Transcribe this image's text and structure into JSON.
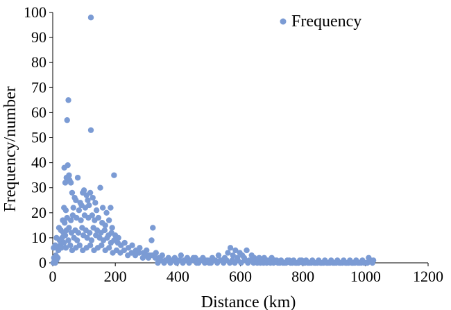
{
  "chart_data": {
    "type": "scatter",
    "title": "",
    "xlabel": "Distance (km)",
    "ylabel": "Frequency/number",
    "xlim": [
      0,
      1200
    ],
    "ylim": [
      0,
      100
    ],
    "x_ticks": [
      "0",
      "200",
      "400",
      "600",
      "800",
      "1000",
      "1200"
    ],
    "y_ticks": [
      "0",
      "10",
      "20",
      "30",
      "40",
      "50",
      "60",
      "70",
      "80",
      "90",
      "100"
    ],
    "grid": false,
    "legend_position": "top-right",
    "marker_color": "#7b9bd4",
    "series": [
      {
        "name": "Frequency",
        "points": [
          [
            122,
            98
          ],
          [
            50,
            65
          ],
          [
            46,
            57
          ],
          [
            122,
            53
          ],
          [
            37,
            38
          ],
          [
            48,
            39
          ],
          [
            52,
            35
          ],
          [
            80,
            34
          ],
          [
            196,
            35
          ],
          [
            44,
            34
          ],
          [
            54,
            33
          ],
          [
            58,
            32
          ],
          [
            40,
            32
          ],
          [
            62,
            28
          ],
          [
            96,
            28
          ],
          [
            120,
            28
          ],
          [
            128,
            26
          ],
          [
            152,
            30
          ],
          [
            100,
            29
          ],
          [
            108,
            27
          ],
          [
            70,
            26
          ],
          [
            74,
            25
          ],
          [
            88,
            24
          ],
          [
            112,
            25
          ],
          [
            136,
            24
          ],
          [
            160,
            22
          ],
          [
            172,
            20
          ],
          [
            185,
            22
          ],
          [
            36,
            22
          ],
          [
            42,
            21
          ],
          [
            66,
            22
          ],
          [
            84,
            21
          ],
          [
            92,
            23
          ],
          [
            104,
            22
          ],
          [
            116,
            23
          ],
          [
            140,
            21
          ],
          [
            32,
            17
          ],
          [
            38,
            16
          ],
          [
            46,
            18
          ],
          [
            58,
            17
          ],
          [
            64,
            19
          ],
          [
            76,
            18
          ],
          [
            90,
            17
          ],
          [
            102,
            19
          ],
          [
            114,
            18
          ],
          [
            126,
            19
          ],
          [
            134,
            17
          ],
          [
            146,
            18
          ],
          [
            158,
            16
          ],
          [
            168,
            15
          ],
          [
            180,
            17
          ],
          [
            190,
            14
          ],
          [
            20,
            14
          ],
          [
            26,
            13
          ],
          [
            34,
            12
          ],
          [
            44,
            13
          ],
          [
            52,
            14
          ],
          [
            60,
            12
          ],
          [
            72,
            13
          ],
          [
            82,
            12
          ],
          [
            94,
            14
          ],
          [
            106,
            13
          ],
          [
            118,
            12
          ],
          [
            130,
            14
          ],
          [
            142,
            13
          ],
          [
            154,
            12
          ],
          [
            166,
            13
          ],
          [
            178,
            11
          ],
          [
            188,
            12
          ],
          [
            200,
            11
          ],
          [
            210,
            10
          ],
          [
            12,
            10
          ],
          [
            22,
            9
          ],
          [
            30,
            10
          ],
          [
            40,
            11
          ],
          [
            50,
            9
          ],
          [
            68,
            10
          ],
          [
            78,
            9
          ],
          [
            98,
            11
          ],
          [
            110,
            10
          ],
          [
            124,
            9
          ],
          [
            138,
            11
          ],
          [
            150,
            10
          ],
          [
            162,
            9
          ],
          [
            174,
            10
          ],
          [
            186,
            8
          ],
          [
            196,
            9
          ],
          [
            208,
            8
          ],
          [
            218,
            7
          ],
          [
            230,
            8
          ],
          [
            242,
            6
          ],
          [
            254,
            7
          ],
          [
            266,
            5
          ],
          [
            278,
            6
          ],
          [
            290,
            4
          ],
          [
            300,
            5
          ],
          [
            310,
            3
          ],
          [
            320,
            14
          ],
          [
            316,
            9
          ],
          [
            330,
            4
          ],
          [
            8,
            7
          ],
          [
            14,
            6
          ],
          [
            18,
            5
          ],
          [
            24,
            7
          ],
          [
            28,
            6
          ],
          [
            36,
            8
          ],
          [
            42,
            6
          ],
          [
            56,
            7
          ],
          [
            62,
            5
          ],
          [
            74,
            6
          ],
          [
            86,
            7
          ],
          [
            96,
            5
          ],
          [
            108,
            6
          ],
          [
            120,
            7
          ],
          [
            132,
            5
          ],
          [
            144,
            6
          ],
          [
            156,
            7
          ],
          [
            168,
            5
          ],
          [
            180,
            6
          ],
          [
            192,
            4
          ],
          [
            204,
            5
          ],
          [
            216,
            4
          ],
          [
            228,
            5
          ],
          [
            240,
            3
          ],
          [
            252,
            4
          ],
          [
            264,
            3
          ],
          [
            276,
            4
          ],
          [
            288,
            2
          ],
          [
            298,
            3
          ],
          [
            306,
            2
          ],
          [
            318,
            3
          ],
          [
            328,
            2
          ],
          [
            4,
            2
          ],
          [
            6,
            1
          ],
          [
            10,
            3
          ],
          [
            16,
            2
          ],
          [
            2,
            0
          ],
          [
            8,
            0
          ],
          [
            12,
            1
          ],
          [
            3,
            6
          ],
          [
            340,
            2
          ],
          [
            350,
            3
          ],
          [
            360,
            1
          ],
          [
            370,
            2
          ],
          [
            380,
            1
          ],
          [
            390,
            2
          ],
          [
            400,
            1
          ],
          [
            410,
            3
          ],
          [
            420,
            1
          ],
          [
            430,
            2
          ],
          [
            440,
            1
          ],
          [
            450,
            2
          ],
          [
            460,
            0
          ],
          [
            470,
            1
          ],
          [
            480,
            2
          ],
          [
            490,
            1
          ],
          [
            500,
            0
          ],
          [
            510,
            2
          ],
          [
            520,
            1
          ],
          [
            530,
            3
          ],
          [
            540,
            1
          ],
          [
            550,
            2
          ],
          [
            560,
            4
          ],
          [
            568,
            6
          ],
          [
            576,
            3
          ],
          [
            584,
            5
          ],
          [
            590,
            2
          ],
          [
            598,
            4
          ],
          [
            606,
            3
          ],
          [
            612,
            2
          ],
          [
            620,
            5
          ],
          [
            628,
            1
          ],
          [
            636,
            3
          ],
          [
            644,
            2
          ],
          [
            652,
            1
          ],
          [
            660,
            2
          ],
          [
            668,
            1
          ],
          [
            676,
            2
          ],
          [
            684,
            0
          ],
          [
            692,
            1
          ],
          [
            700,
            2
          ],
          [
            710,
            1
          ],
          [
            720,
            0
          ],
          [
            730,
            1
          ],
          [
            740,
            0
          ],
          [
            750,
            1
          ],
          [
            760,
            0
          ],
          [
            770,
            1
          ],
          [
            780,
            0
          ],
          [
            790,
            1
          ],
          [
            800,
            0
          ],
          [
            810,
            1
          ],
          [
            820,
            0
          ],
          [
            830,
            1
          ],
          [
            840,
            0
          ],
          [
            850,
            1
          ],
          [
            860,
            0
          ],
          [
            870,
            1
          ],
          [
            880,
            0
          ],
          [
            890,
            1
          ],
          [
            900,
            0
          ],
          [
            910,
            1
          ],
          [
            920,
            0
          ],
          [
            930,
            1
          ],
          [
            940,
            0
          ],
          [
            950,
            1
          ],
          [
            960,
            0
          ],
          [
            970,
            1
          ],
          [
            980,
            0
          ],
          [
            990,
            1
          ],
          [
            1000,
            0
          ],
          [
            1010,
            2
          ],
          [
            1016,
            1
          ],
          [
            1022,
            0
          ],
          [
            1025,
            1
          ],
          [
            336,
            0
          ],
          [
            346,
            1
          ],
          [
            356,
            0
          ],
          [
            366,
            1
          ],
          [
            376,
            0
          ],
          [
            386,
            1
          ],
          [
            396,
            0
          ],
          [
            406,
            1
          ],
          [
            416,
            0
          ],
          [
            426,
            1
          ],
          [
            436,
            0
          ],
          [
            446,
            1
          ],
          [
            456,
            2
          ],
          [
            466,
            0
          ],
          [
            476,
            1
          ],
          [
            486,
            0
          ],
          [
            496,
            1
          ],
          [
            506,
            0
          ],
          [
            516,
            1
          ],
          [
            526,
            0
          ],
          [
            536,
            1
          ],
          [
            546,
            0
          ],
          [
            556,
            1
          ],
          [
            566,
            0
          ],
          [
            574,
            1
          ],
          [
            582,
            0
          ],
          [
            592,
            1
          ],
          [
            602,
            0
          ],
          [
            614,
            1
          ],
          [
            624,
            0
          ],
          [
            634,
            1
          ],
          [
            642,
            0
          ],
          [
            654,
            0
          ],
          [
            664,
            0
          ],
          [
            674,
            0
          ],
          [
            686,
            1
          ],
          [
            696,
            0
          ],
          [
            706,
            0
          ],
          [
            716,
            1
          ],
          [
            726,
            0
          ],
          [
            736,
            0
          ],
          [
            746,
            0
          ],
          [
            756,
            1
          ],
          [
            766,
            0
          ],
          [
            776,
            0
          ],
          [
            786,
            0
          ],
          [
            796,
            1
          ],
          [
            806,
            0
          ],
          [
            816,
            0
          ],
          [
            826,
            0
          ],
          [
            836,
            0
          ],
          [
            846,
            0
          ],
          [
            856,
            0
          ],
          [
            866,
            0
          ],
          [
            876,
            0
          ],
          [
            886,
            0
          ],
          [
            896,
            0
          ],
          [
            906,
            0
          ],
          [
            916,
            0
          ],
          [
            926,
            0
          ],
          [
            936,
            0
          ],
          [
            946,
            0
          ],
          [
            956,
            0
          ],
          [
            966,
            0
          ],
          [
            976,
            0
          ],
          [
            986,
            0
          ],
          [
            996,
            0
          ],
          [
            1006,
            0
          ]
        ]
      }
    ]
  }
}
